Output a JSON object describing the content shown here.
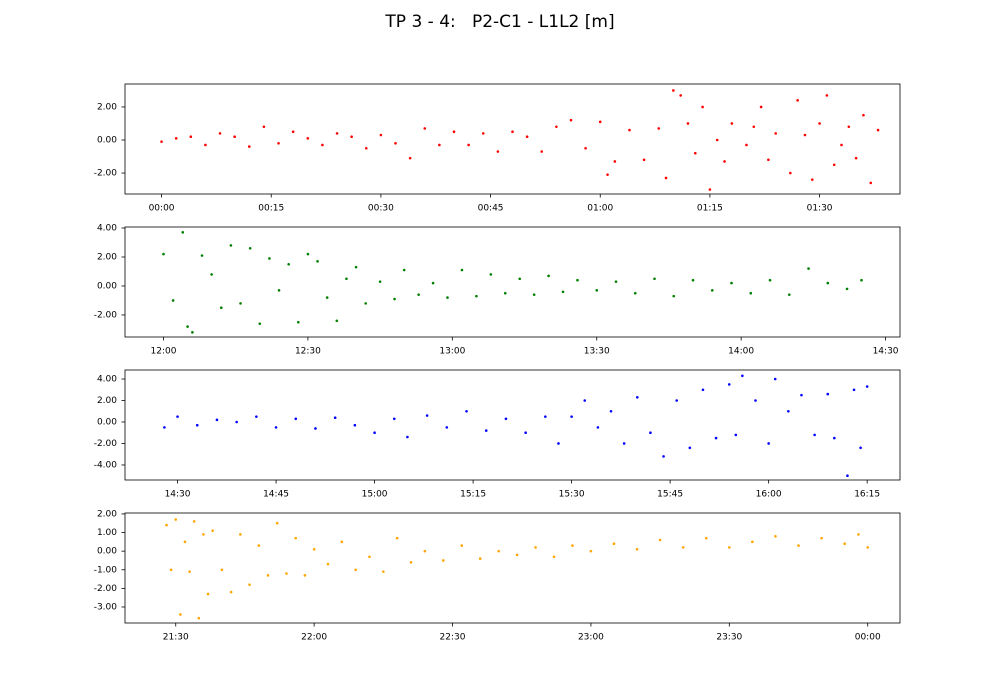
{
  "title": "TP 3 - 4:   P2-C1 - L1L2 [m]",
  "chart_data": [
    {
      "type": "scatter",
      "color": "#ff0000",
      "x": [
        "00:00",
        "00:02",
        "00:04",
        "00:06",
        "00:08",
        "00:10",
        "00:12",
        "00:14",
        "00:16",
        "00:18",
        "00:20",
        "00:22",
        "00:24",
        "00:26",
        "00:28",
        "00:30",
        "00:32",
        "00:34",
        "00:36",
        "00:38",
        "00:40",
        "00:42",
        "00:44",
        "00:46",
        "00:48",
        "00:50",
        "00:52",
        "00:54",
        "00:56",
        "00:58",
        "01:00",
        "01:01",
        "01:02",
        "01:04",
        "01:06",
        "01:08",
        "01:09",
        "01:10",
        "01:11",
        "01:12",
        "01:13",
        "01:14",
        "01:15",
        "01:16",
        "01:17",
        "01:18",
        "01:20",
        "01:21",
        "01:22",
        "01:23",
        "01:24",
        "01:26",
        "01:27",
        "01:28",
        "01:29",
        "01:30",
        "01:31",
        "01:32",
        "01:33",
        "01:34",
        "01:35",
        "01:36",
        "01:37",
        "01:38"
      ],
      "values": [
        -0.1,
        0.1,
        0.2,
        -0.3,
        0.4,
        0.2,
        -0.4,
        0.8,
        -0.2,
        0.5,
        0.1,
        -0.3,
        0.4,
        0.2,
        -0.5,
        0.3,
        -0.2,
        -1.1,
        0.7,
        -0.3,
        0.5,
        -0.3,
        0.4,
        -0.7,
        0.5,
        0.2,
        -0.7,
        0.8,
        1.2,
        -0.5,
        1.1,
        -2.1,
        -1.3,
        0.6,
        -1.2,
        0.7,
        -2.3,
        3.0,
        2.7,
        1.0,
        -0.8,
        2.0,
        -3.0,
        0.0,
        -1.3,
        1.0,
        -0.3,
        0.8,
        2.0,
        -1.2,
        0.4,
        -2.0,
        2.4,
        0.3,
        -2.4,
        1.0,
        2.7,
        -1.5,
        -0.3,
        0.8,
        -1.1,
        1.5,
        -2.6,
        0.6
      ],
      "xlim": [
        "23:55",
        "01:41"
      ],
      "xticks": [
        "00:00",
        "00:15",
        "00:30",
        "00:45",
        "01:00",
        "01:15",
        "01:30"
      ],
      "ylim": [
        -3.27,
        3.39
      ],
      "yticks": [
        {
          "value": -2,
          "label": "-2.00"
        },
        {
          "value": 0,
          "label": "0.00"
        },
        {
          "value": 2,
          "label": "2.00"
        }
      ]
    },
    {
      "type": "scatter",
      "color": "#008000",
      "x": [
        "12:00",
        "12:02",
        "12:04",
        "12:05",
        "12:06",
        "12:08",
        "12:10",
        "12:12",
        "12:14",
        "12:16",
        "12:18",
        "12:20",
        "12:22",
        "12:24",
        "12:26",
        "12:28",
        "12:30",
        "12:32",
        "12:34",
        "12:36",
        "12:38",
        "12:40",
        "12:42",
        "12:45",
        "12:48",
        "12:50",
        "12:53",
        "12:56",
        "12:59",
        "13:02",
        "13:05",
        "13:08",
        "13:11",
        "13:14",
        "13:17",
        "13:20",
        "13:23",
        "13:26",
        "13:30",
        "13:34",
        "13:38",
        "13:42",
        "13:46",
        "13:50",
        "13:54",
        "13:58",
        "14:02",
        "14:06",
        "14:10",
        "14:14",
        "14:18",
        "14:22",
        "14:25"
      ],
      "values": [
        2.2,
        -1.0,
        3.7,
        -2.8,
        -3.2,
        2.1,
        0.8,
        -1.5,
        2.8,
        -1.2,
        2.6,
        -2.6,
        1.9,
        -0.3,
        1.5,
        -2.5,
        2.2,
        1.7,
        -0.8,
        -2.4,
        0.5,
        1.3,
        -1.2,
        0.3,
        -0.9,
        1.1,
        -0.6,
        0.2,
        -0.8,
        1.1,
        -0.7,
        0.8,
        -0.5,
        0.5,
        -0.6,
        0.7,
        -0.4,
        0.4,
        -0.3,
        0.3,
        -0.5,
        0.5,
        -0.7,
        0.4,
        -0.3,
        0.2,
        -0.5,
        0.4,
        -0.6,
        1.2,
        0.2,
        -0.2,
        0.4
      ],
      "xlim": [
        "11:52",
        "14:33"
      ],
      "xticks": [
        "12:00",
        "12:30",
        "13:00",
        "13:30",
        "14:00",
        "14:30"
      ],
      "ylim": [
        -3.52,
        4.07
      ],
      "yticks": [
        {
          "value": -2,
          "label": "-2.00"
        },
        {
          "value": 0,
          "label": "0.00"
        },
        {
          "value": 2,
          "label": "2.00"
        },
        {
          "value": 4,
          "label": "4.00"
        }
      ]
    },
    {
      "type": "scatter",
      "color": "#0000ff",
      "x": [
        "14:28",
        "14:30",
        "14:33",
        "14:36",
        "14:39",
        "14:42",
        "14:45",
        "14:48",
        "14:51",
        "14:54",
        "14:57",
        "15:00",
        "15:03",
        "15:05",
        "15:08",
        "15:11",
        "15:14",
        "15:17",
        "15:20",
        "15:23",
        "15:26",
        "15:28",
        "15:30",
        "15:32",
        "15:34",
        "15:36",
        "15:38",
        "15:40",
        "15:42",
        "15:44",
        "15:46",
        "15:48",
        "15:50",
        "15:52",
        "15:54",
        "15:55",
        "15:56",
        "15:58",
        "16:00",
        "16:01",
        "16:03",
        "16:05",
        "16:07",
        "16:09",
        "16:10",
        "16:12",
        "16:13",
        "16:14",
        "16:15"
      ],
      "values": [
        -0.5,
        0.5,
        -0.3,
        0.2,
        0.0,
        0.5,
        -0.5,
        0.3,
        -0.6,
        0.4,
        -0.3,
        -1.0,
        0.3,
        -1.4,
        0.6,
        -0.5,
        1.0,
        -0.8,
        0.3,
        -1.0,
        0.5,
        -2.0,
        0.5,
        2.0,
        -0.5,
        1.0,
        -2.0,
        2.3,
        -1.0,
        -3.2,
        2.0,
        -2.4,
        3.0,
        -1.5,
        3.5,
        -1.2,
        4.3,
        2.0,
        -2.0,
        4.0,
        1.0,
        2.5,
        -1.2,
        2.6,
        -1.5,
        -5.0,
        3.0,
        -2.4,
        3.3
      ],
      "xlim": [
        "14:22",
        "16:20"
      ],
      "xticks": [
        "14:30",
        "14:45",
        "15:00",
        "15:15",
        "15:30",
        "15:45",
        "16:00",
        "16:15"
      ],
      "ylim": [
        -5.4,
        4.84
      ],
      "yticks": [
        {
          "value": -4,
          "label": "-4.00"
        },
        {
          "value": -2,
          "label": "-2.00"
        },
        {
          "value": 0,
          "label": "0.00"
        },
        {
          "value": 2,
          "label": "2.00"
        },
        {
          "value": 4,
          "label": "4.00"
        }
      ]
    },
    {
      "type": "scatter",
      "color": "#ffa500",
      "x": [
        "21:28",
        "21:29",
        "21:30",
        "21:31",
        "21:32",
        "21:33",
        "21:34",
        "21:35",
        "21:36",
        "21:37",
        "21:38",
        "21:40",
        "21:42",
        "21:44",
        "21:46",
        "21:48",
        "21:50",
        "21:52",
        "21:54",
        "21:56",
        "21:58",
        "22:00",
        "22:03",
        "22:06",
        "22:09",
        "22:12",
        "22:15",
        "22:18",
        "22:21",
        "22:24",
        "22:28",
        "22:32",
        "22:36",
        "22:40",
        "22:44",
        "22:48",
        "22:52",
        "22:56",
        "23:00",
        "23:05",
        "23:10",
        "23:15",
        "23:20",
        "23:25",
        "23:30",
        "23:35",
        "23:40",
        "23:45",
        "23:50",
        "23:55",
        "23:58",
        "00:00"
      ],
      "values": [
        1.4,
        -1.0,
        1.7,
        -3.4,
        0.5,
        -1.1,
        1.6,
        -3.6,
        0.9,
        -2.3,
        1.1,
        -1.0,
        -2.2,
        0.9,
        -1.8,
        0.3,
        -1.3,
        1.5,
        -1.2,
        0.7,
        -1.3,
        0.1,
        -0.7,
        0.5,
        -1.0,
        -0.3,
        -1.1,
        0.7,
        -0.6,
        0.0,
        -0.5,
        0.3,
        -0.4,
        0.0,
        -0.2,
        0.2,
        -0.3,
        0.3,
        0.0,
        0.4,
        0.1,
        0.6,
        0.2,
        0.7,
        0.2,
        0.5,
        0.8,
        0.3,
        0.7,
        0.4,
        0.9,
        0.2
      ],
      "xlim": [
        "21:19",
        "00:07"
      ],
      "xticks": [
        "21:30",
        "22:00",
        "22:30",
        "23:00",
        "23:30",
        "00:00"
      ],
      "ylim": [
        -3.86,
        2.05
      ],
      "yticks": [
        {
          "value": -3,
          "label": "-3.00"
        },
        {
          "value": -2,
          "label": "-2.00"
        },
        {
          "value": -1,
          "label": "-1.00"
        },
        {
          "value": 0,
          "label": "0.00"
        },
        {
          "value": 1,
          "label": "1.00"
        },
        {
          "value": 2,
          "label": "2.00"
        }
      ]
    }
  ]
}
